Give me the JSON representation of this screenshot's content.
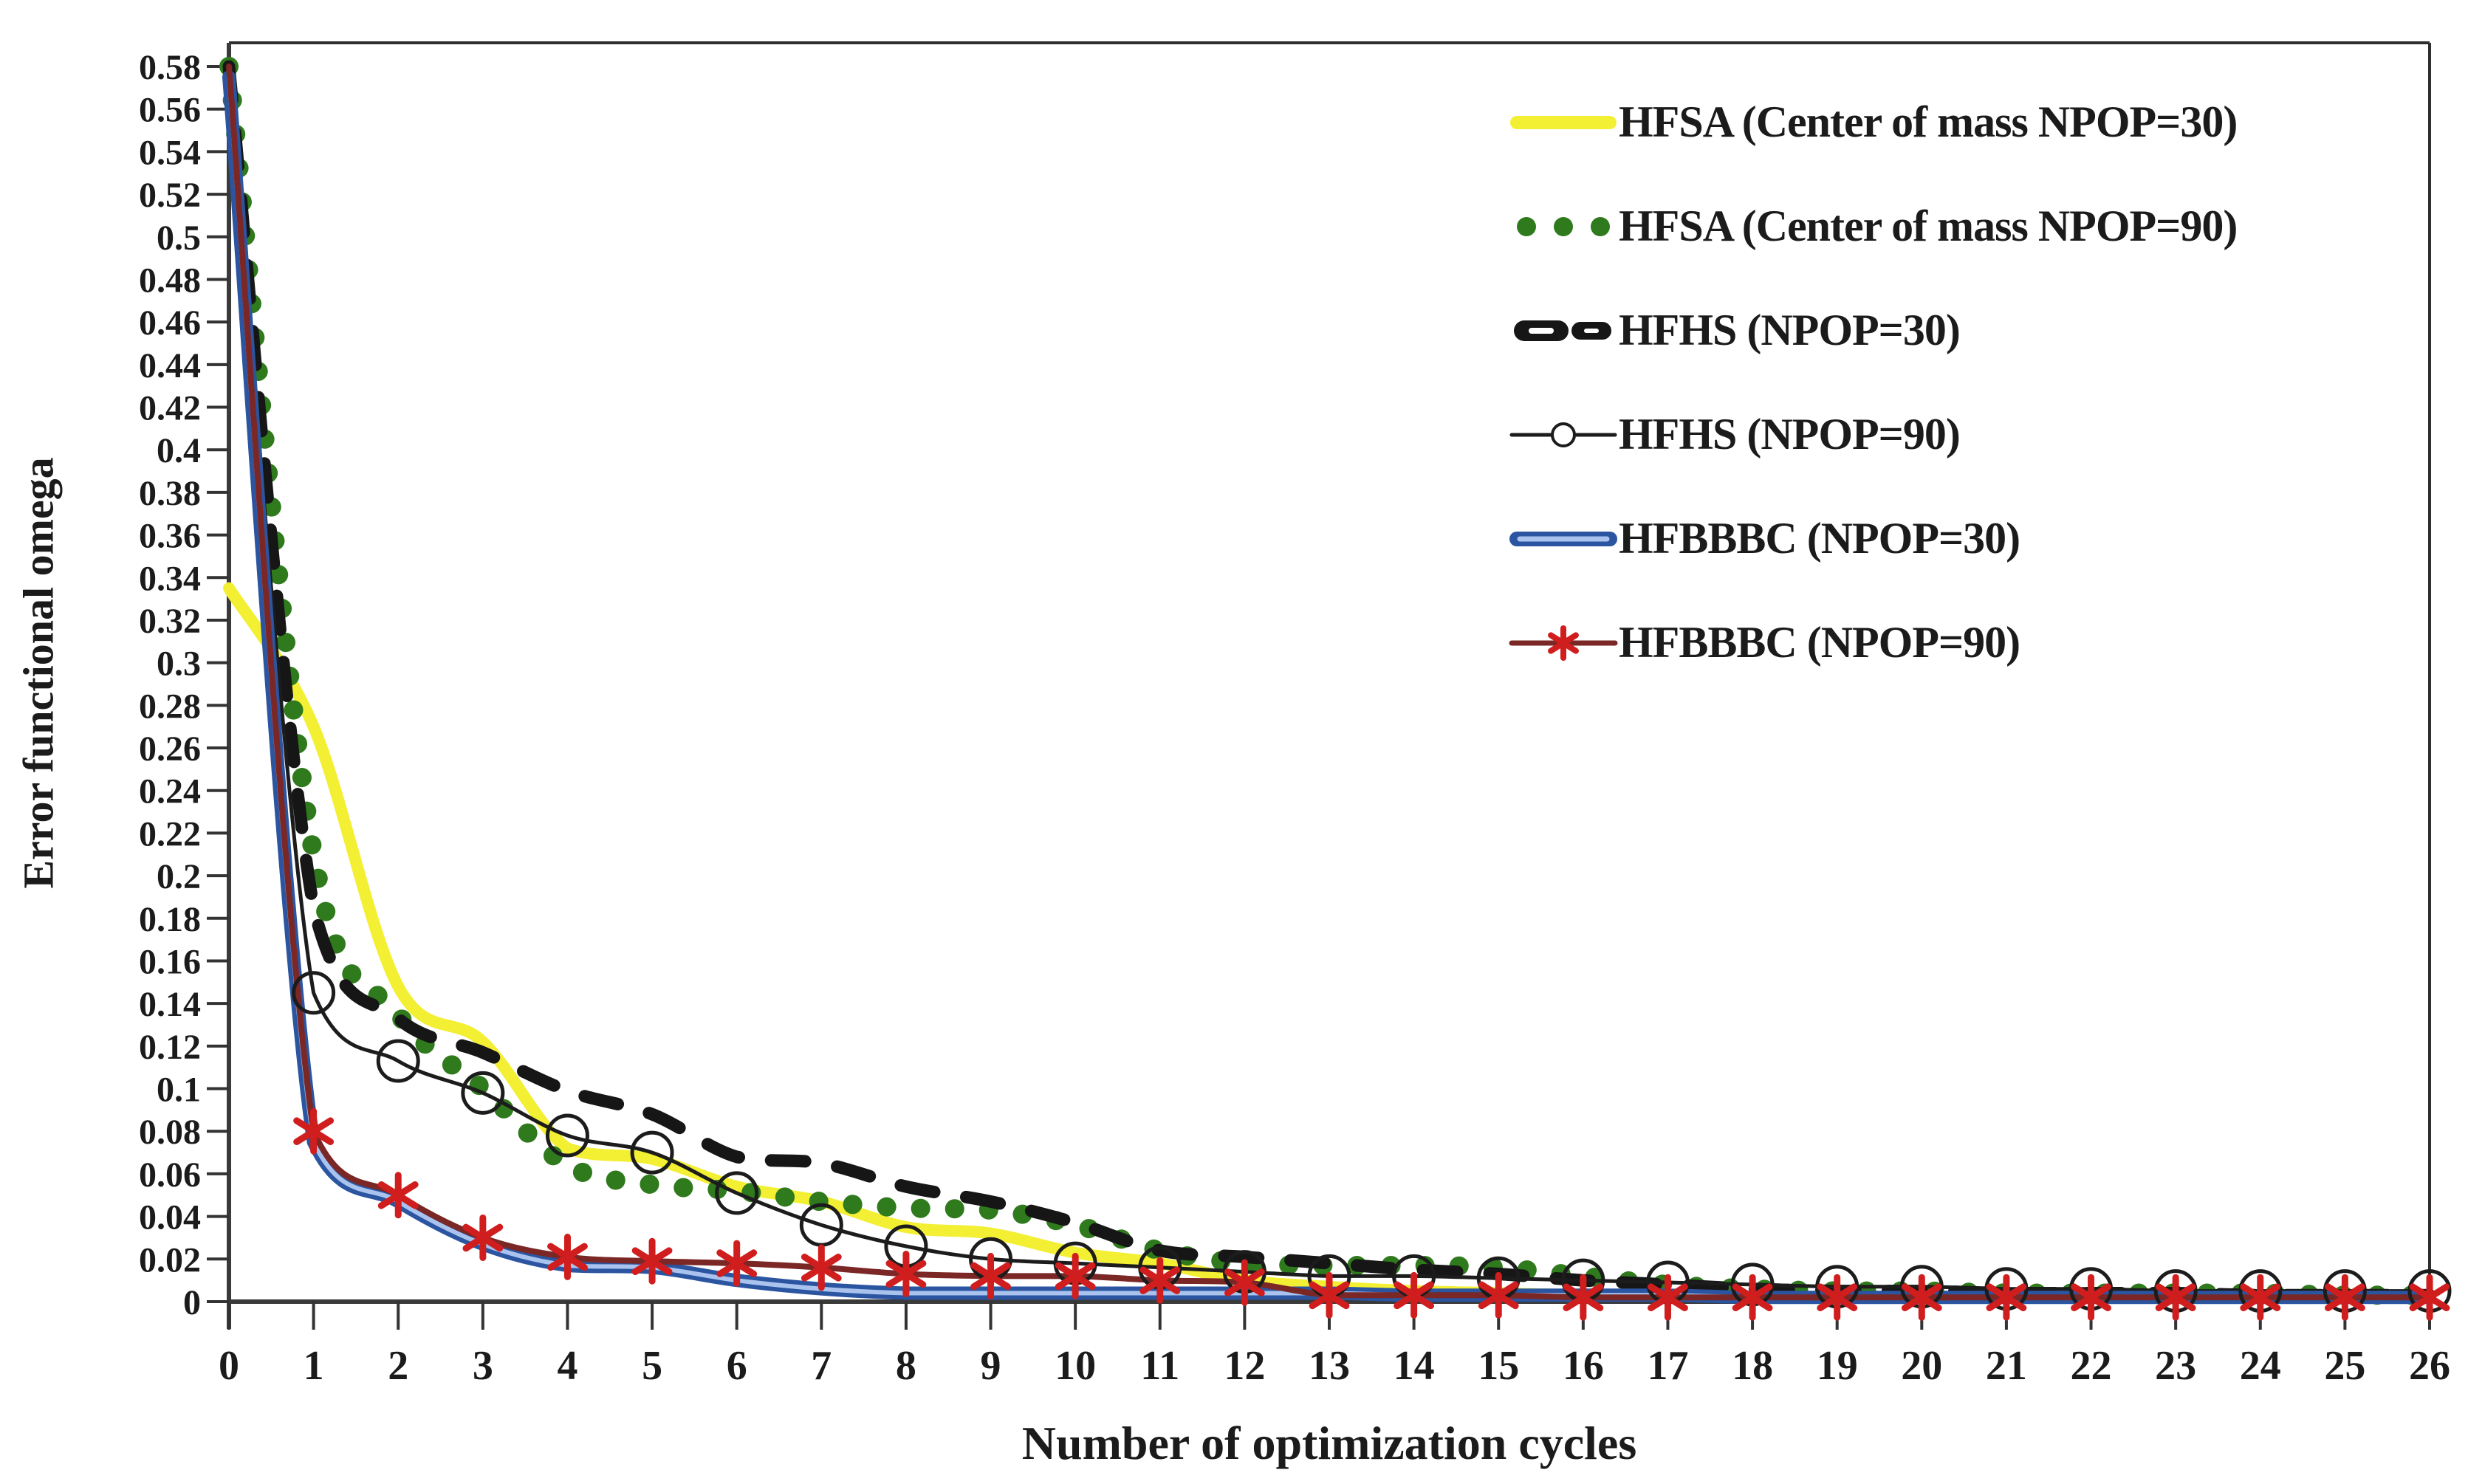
{
  "figure": {
    "background": "#ffffff",
    "axis_color": "#3a3a3a",
    "text_color": "#1b1b1b"
  },
  "chart_data": {
    "type": "line",
    "title": "",
    "xlabel": "Number of optimization cycles",
    "ylabel": "Error functional omega",
    "x": [
      0,
      1,
      2,
      3,
      4,
      5,
      6,
      7,
      8,
      9,
      10,
      11,
      12,
      13,
      14,
      15,
      16,
      17,
      18,
      19,
      20,
      21,
      22,
      23,
      24,
      25,
      26
    ],
    "x_tick_labels": [
      "0",
      "1",
      "2",
      "3",
      "4",
      "5",
      "6",
      "7",
      "8",
      "9",
      "10",
      "11",
      "12",
      "13",
      "14",
      "15",
      "16",
      "17",
      "18",
      "19",
      "20",
      "21",
      "22",
      "23",
      "24",
      "25",
      "26"
    ],
    "y_tick_labels": [
      "0",
      "0.02",
      "0.04",
      "0.06",
      "0.08",
      "0.1",
      "0.12",
      "0.14",
      "0.16",
      "0.18",
      "0.2",
      "0.22",
      "0.24",
      "0.26",
      "0.28",
      "0.3",
      "0.32",
      "0.34",
      "0.36",
      "0.38",
      "0.4",
      "0.42",
      "0.44",
      "0.46",
      "0.48",
      "0.5",
      "0.52",
      "0.54",
      "0.56",
      "0.58"
    ],
    "ylim": [
      0,
      0.58
    ],
    "xlim": [
      0,
      26
    ],
    "ytick_step": 0.02,
    "grid": false,
    "legend_position": "upper right",
    "series": [
      {
        "name": "HFSA (Center of mass NPOP=30)",
        "style": "solid",
        "color": "#f3ef33",
        "width": 16,
        "values": [
          0.335,
          0.27,
          0.148,
          0.122,
          0.072,
          0.067,
          0.054,
          0.047,
          0.035,
          0.032,
          0.023,
          0.018,
          0.01,
          0.007,
          0.005,
          0.004,
          0.003,
          0.003,
          0.002,
          0.002,
          0.002,
          0.002,
          0.002,
          0.002,
          0.002,
          0.002,
          0.002
        ]
      },
      {
        "name": "HFSA (Center of mass NPOP=90)",
        "style": "dotted",
        "color": "#2e7a1c",
        "width": 26,
        "values": [
          0.58,
          0.21,
          0.135,
          0.1,
          0.064,
          0.055,
          0.052,
          0.047,
          0.044,
          0.043,
          0.036,
          0.024,
          0.018,
          0.017,
          0.017,
          0.016,
          0.012,
          0.008,
          0.006,
          0.005,
          0.005,
          0.004,
          0.004,
          0.004,
          0.004,
          0.003,
          0.003
        ]
      },
      {
        "name": "HFHS (NPOP=30)",
        "style": "dashed",
        "color": "#161616",
        "width": 17,
        "values": [
          0.58,
          0.185,
          0.133,
          0.117,
          0.099,
          0.088,
          0.068,
          0.065,
          0.054,
          0.047,
          0.037,
          0.024,
          0.021,
          0.018,
          0.015,
          0.013,
          0.01,
          0.008,
          0.006,
          0.005,
          0.005,
          0.004,
          0.004,
          0.004,
          0.003,
          0.003,
          0.003
        ]
      },
      {
        "name": "HFHS (NPOP=90)",
        "style": "solid",
        "color": "#1c1c1c",
        "width": 5,
        "marker": "circle",
        "values": [
          0.58,
          0.145,
          0.113,
          0.098,
          0.078,
          0.07,
          0.051,
          0.036,
          0.026,
          0.02,
          0.018,
          0.016,
          0.014,
          0.012,
          0.012,
          0.011,
          0.01,
          0.009,
          0.008,
          0.007,
          0.007,
          0.006,
          0.006,
          0.005,
          0.005,
          0.005,
          0.005
        ]
      },
      {
        "name": "HFBBBC (NPOP=30)",
        "style": "double",
        "color": "#2b55a0",
        "inner_color": "#a9c3ee",
        "width": 18,
        "values": [
          0.575,
          0.075,
          0.047,
          0.027,
          0.017,
          0.016,
          0.01,
          0.006,
          0.004,
          0.004,
          0.004,
          0.004,
          0.004,
          0.004,
          0.003,
          0.003,
          0.003,
          0.003,
          0.002,
          0.002,
          0.002,
          0.002,
          0.002,
          0.002,
          0.002,
          0.002,
          0.002
        ]
      },
      {
        "name": "HFBBBC (NPOP=90)",
        "style": "solid",
        "color": "#7a2726",
        "width": 8,
        "marker": "asterisk",
        "marker_color": "#d01d1d",
        "values": [
          0.58,
          0.08,
          0.05,
          0.03,
          0.021,
          0.019,
          0.018,
          0.016,
          0.013,
          0.012,
          0.012,
          0.01,
          0.009,
          0.003,
          0.003,
          0.003,
          0.002,
          0.002,
          0.002,
          0.002,
          0.002,
          0.002,
          0.002,
          0.002,
          0.002,
          0.002,
          0.002
        ]
      }
    ]
  }
}
